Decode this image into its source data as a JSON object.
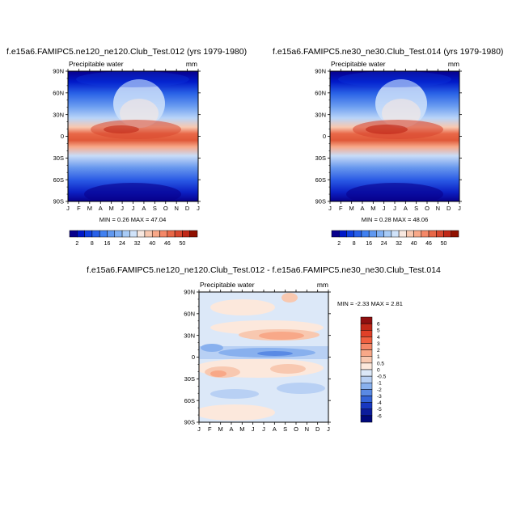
{
  "chart_data": [
    {
      "type": "heatmap",
      "title": "f.e15a6.FAMIPC5.ne120_ne120.Club_Test.012 (yrs 1979-1980)",
      "variable": "Precipitable water",
      "units": "mm",
      "xlabel": "",
      "ylabel": "",
      "x_ticks": [
        "J",
        "F",
        "M",
        "A",
        "M",
        "J",
        "J",
        "A",
        "S",
        "O",
        "N",
        "D",
        "J"
      ],
      "y_ticks": [
        "90N",
        "60N",
        "30N",
        "0",
        "30S",
        "60S",
        "90S"
      ],
      "y_range": [
        -90,
        90
      ],
      "stats": "MIN =   0.26 MAX =  47.04",
      "legend": {
        "labels": [
          "2",
          "8",
          "16",
          "24",
          "32",
          "40",
          "46",
          "50"
        ],
        "colors": [
          "#08008c",
          "#0018c8",
          "#1040e0",
          "#2860e8",
          "#4080f0",
          "#6098f0",
          "#80b0f4",
          "#a8cbf6",
          "#d0e3fa",
          "#f8e8e0",
          "#f8c8b0",
          "#f8a888",
          "#f48868",
          "#e86848",
          "#d84830",
          "#c02818",
          "#901000"
        ]
      }
    },
    {
      "type": "heatmap",
      "title": "f.e15a6.FAMIPC5.ne30_ne30.Club_Test.014 (yrs 1979-1980)",
      "variable": "Precipitable water",
      "units": "mm",
      "xlabel": "",
      "ylabel": "",
      "x_ticks": [
        "J",
        "F",
        "M",
        "A",
        "M",
        "J",
        "J",
        "A",
        "S",
        "O",
        "N",
        "D",
        "J"
      ],
      "y_ticks": [
        "90N",
        "60N",
        "30N",
        "0",
        "30S",
        "60S",
        "90S"
      ],
      "y_range": [
        -90,
        90
      ],
      "stats": "MIN =   0.28 MAX =  48.06",
      "legend": {
        "labels": [
          "2",
          "8",
          "16",
          "24",
          "32",
          "40",
          "46",
          "50"
        ],
        "colors": [
          "#08008c",
          "#0018c8",
          "#1040e0",
          "#2860e8",
          "#4080f0",
          "#6098f0",
          "#80b0f4",
          "#a8cbf6",
          "#d0e3fa",
          "#f8e8e0",
          "#f8c8b0",
          "#f8a888",
          "#f48868",
          "#e86848",
          "#d84830",
          "#c02818",
          "#901000"
        ]
      }
    },
    {
      "type": "heatmap",
      "title": "f.e15a6.FAMIPC5.ne120_ne120.Club_Test.012 - f.e15a6.FAMIPC5.ne30_ne30.Club_Test.014",
      "variable": "Precipitable water",
      "units": "mm",
      "xlabel": "",
      "ylabel": "",
      "x_ticks": [
        "J",
        "F",
        "M",
        "A",
        "M",
        "J",
        "J",
        "A",
        "S",
        "O",
        "N",
        "D",
        "J"
      ],
      "y_ticks": [
        "90N",
        "60N",
        "30N",
        "0",
        "30S",
        "60S",
        "90S"
      ],
      "y_range": [
        -90,
        90
      ],
      "stats": "MIN =  -2.33 MAX =   2.81",
      "legend": {
        "labels": [
          "6",
          "5",
          "4",
          "3",
          "2",
          "1",
          "0.5",
          "0",
          "-0.5",
          "-1",
          "-2",
          "-3",
          "-4",
          "-5",
          "-6"
        ],
        "colors": [
          "#901010",
          "#c02818",
          "#e04028",
          "#f06040",
          "#f48868",
          "#f8a888",
          "#f8c8b0",
          "#fce8dc",
          "#dce8f8",
          "#b8d0f4",
          "#88b0ee",
          "#5a8ae4",
          "#3464d8",
          "#1838c0",
          "#0c1c9c",
          "#00087c"
        ]
      }
    }
  ]
}
